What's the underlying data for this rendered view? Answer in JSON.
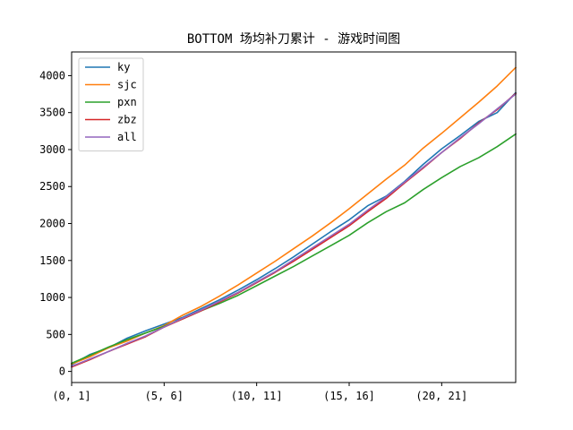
{
  "chart_data": {
    "type": "line",
    "title": "BOTTOM 场均补刀累计 - 游戏时间图",
    "xlabel": "",
    "ylabel": "",
    "x": [
      "(0, 1]",
      "(1, 2]",
      "(2, 3]",
      "(3, 4]",
      "(4, 5]",
      "(5, 6]",
      "(6, 7]",
      "(7, 8]",
      "(8, 9]",
      "(9, 10]",
      "(10, 11]",
      "(11, 12]",
      "(12, 13]",
      "(13, 14]",
      "(14, 15]",
      "(15, 16]",
      "(16, 17]",
      "(17, 18]",
      "(18, 19]",
      "(19, 20]",
      "(20, 21]",
      "(21, 22]",
      "(22, 23]",
      "(23, 24]",
      "(24, 25]"
    ],
    "xticks": [
      "(0, 1]",
      "(5, 6]",
      "(10, 11]",
      "(15, 16]",
      "(20, 21]"
    ],
    "ylim": [
      -150,
      4320
    ],
    "yticks": [
      0,
      500,
      1000,
      1500,
      2000,
      2500,
      3000,
      3500,
      4000
    ],
    "grid": false,
    "legend_position": "top-left",
    "series": [
      {
        "name": "ky",
        "color": "#1f77b4",
        "values": [
          90,
          230,
          320,
          450,
          550,
          640,
          730,
          850,
          970,
          1100,
          1240,
          1390,
          1550,
          1720,
          1890,
          2050,
          2240,
          2370,
          2570,
          2800,
          3010,
          3190,
          3380,
          3500,
          3770
        ]
      },
      {
        "name": "sjc",
        "color": "#ff7f0e",
        "values": [
          100,
          200,
          320,
          410,
          520,
          620,
          760,
          880,
          1020,
          1170,
          1330,
          1490,
          1660,
          1830,
          2010,
          2200,
          2400,
          2600,
          2790,
          3020,
          3220,
          3430,
          3640,
          3860,
          4110
        ]
      },
      {
        "name": "pxn",
        "color": "#2ca02c",
        "values": [
          110,
          220,
          330,
          430,
          520,
          610,
          710,
          820,
          920,
          1030,
          1160,
          1290,
          1420,
          1560,
          1700,
          1840,
          2010,
          2160,
          2280,
          2460,
          2620,
          2770,
          2890,
          3040,
          3210
        ]
      },
      {
        "name": "zbz",
        "color": "#d62728",
        "values": [
          60,
          160,
          270,
          370,
          470,
          600,
          710,
          820,
          940,
          1060,
          1200,
          1340,
          1490,
          1650,
          1810,
          1970,
          2160,
          2340,
          2550,
          2750,
          2960,
          3150,
          3360,
          3540,
          3760
        ]
      },
      {
        "name": "all",
        "color": "#9467bd",
        "values": [
          70,
          170,
          270,
          380,
          480,
          600,
          720,
          830,
          950,
          1070,
          1210,
          1350,
          1510,
          1670,
          1830,
          1990,
          2180,
          2360,
          2560,
          2760,
          2960,
          3160,
          3350,
          3550,
          3750
        ]
      }
    ]
  },
  "colors": {
    "axes": "#000000",
    "background": "#ffffff"
  }
}
